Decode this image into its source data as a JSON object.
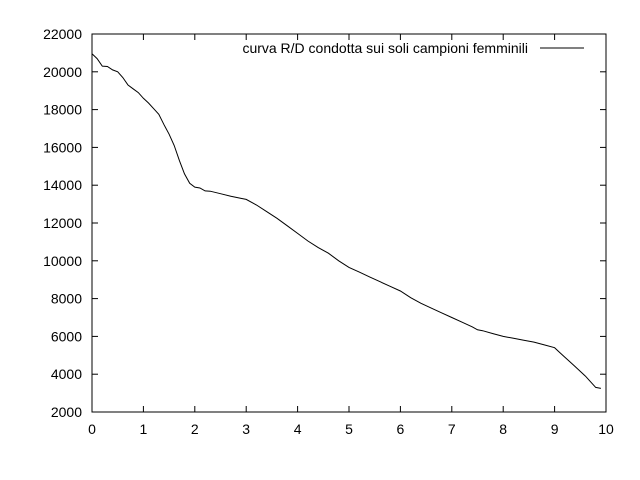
{
  "chart_data": {
    "type": "line",
    "title": "",
    "xlabel": "",
    "ylabel": "",
    "xlim": [
      0,
      10
    ],
    "ylim": [
      2000,
      22000
    ],
    "grid": false,
    "legend_position": "top-right",
    "x_ticks": [
      "0",
      "1",
      "2",
      "3",
      "4",
      "5",
      "6",
      "7",
      "8",
      "9",
      "10"
    ],
    "y_ticks": [
      "2000",
      "4000",
      "6000",
      "8000",
      "10000",
      "12000",
      "14000",
      "16000",
      "18000",
      "20000",
      "22000"
    ],
    "series": [
      {
        "name": "curva R/D condotta sui soli campioni femminili",
        "color": "#000000",
        "x": [
          0,
          0.1,
          0.2,
          0.3,
          0.4,
          0.5,
          0.6,
          0.7,
          0.8,
          0.9,
          1.0,
          1.1,
          1.2,
          1.3,
          1.4,
          1.5,
          1.6,
          1.7,
          1.8,
          1.9,
          2.0,
          2.1,
          2.2,
          2.3,
          2.5,
          2.7,
          2.9,
          3.0,
          3.2,
          3.4,
          3.6,
          3.8,
          4.0,
          4.2,
          4.4,
          4.6,
          4.8,
          5.0,
          5.2,
          5.4,
          5.6,
          5.8,
          6.0,
          6.2,
          6.4,
          6.6,
          6.8,
          7.0,
          7.2,
          7.4,
          7.5,
          7.6,
          7.8,
          8.0,
          8.2,
          8.4,
          8.6,
          8.8,
          9.0,
          9.1,
          9.2,
          9.3,
          9.4,
          9.5,
          9.6,
          9.7,
          9.8,
          9.9
        ],
        "y": [
          20950,
          20700,
          20300,
          20280,
          20100,
          20000,
          19700,
          19300,
          19100,
          18900,
          18600,
          18350,
          18050,
          17750,
          17200,
          16700,
          16100,
          15300,
          14600,
          14100,
          13900,
          13850,
          13700,
          13680,
          13550,
          13420,
          13300,
          13250,
          12950,
          12600,
          12250,
          11850,
          11450,
          11050,
          10700,
          10400,
          10000,
          9650,
          9400,
          9150,
          8900,
          8650,
          8400,
          8050,
          7750,
          7500,
          7250,
          7000,
          6750,
          6500,
          6350,
          6300,
          6150,
          6000,
          5900,
          5800,
          5700,
          5550,
          5400,
          5150,
          4900,
          4650,
          4400,
          4150,
          3900,
          3600,
          3300,
          3250
        ]
      }
    ]
  }
}
